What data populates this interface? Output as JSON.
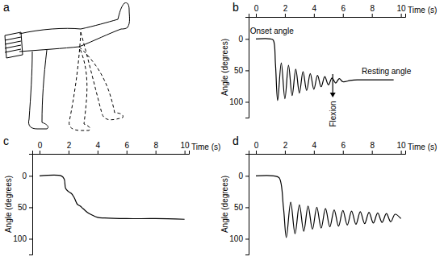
{
  "figure": {
    "panel_a_label": "a"
  },
  "chart_data": [
    {
      "type": "line",
      "panel_label": "b",
      "x_label": "Time (s)",
      "y_label": "Angle (degrees)",
      "color": "#000000",
      "xlim": [
        -0.5,
        10.3
      ],
      "xticks": [
        0,
        2,
        4,
        6,
        8,
        10
      ],
      "ylim": [
        -35,
        125
      ],
      "yticks": [
        0,
        50,
        100
      ],
      "x": [
        0,
        1.0,
        1.2,
        1.35,
        1.5,
        1.75,
        2.0,
        2.25,
        2.5,
        2.75,
        3.0,
        3.25,
        3.5,
        3.75,
        4.0,
        4.25,
        4.5,
        4.75,
        5.0,
        5.25,
        5.5,
        5.75,
        6.0,
        6.5,
        7.0,
        8.0,
        9.5
      ],
      "values": [
        0,
        0,
        2,
        40,
        98,
        38,
        95,
        42,
        90,
        48,
        86,
        52,
        82,
        55,
        80,
        58,
        76,
        60,
        73,
        62,
        70,
        63,
        68,
        66,
        65,
        65,
        65
      ],
      "annotations": [
        {
          "text": "Onset angle"
        },
        {
          "text": "Resting angle"
        },
        {
          "text": "Flexion"
        }
      ]
    },
    {
      "type": "line",
      "panel_label": "c",
      "x_label": "Time (s)",
      "y_label": "Angle (degrees)",
      "color": "#000000",
      "xlim": [
        -0.5,
        10.3
      ],
      "xticks": [
        0,
        2,
        4,
        6,
        8,
        10
      ],
      "ylim": [
        -35,
        125
      ],
      "yticks": [
        0,
        50,
        100
      ],
      "x": [
        0,
        1.5,
        1.7,
        1.8,
        2.0,
        2.2,
        2.4,
        2.6,
        2.8,
        3.0,
        3.3,
        3.6,
        4.0,
        4.5,
        6.0,
        8.0,
        10.0
      ],
      "values": [
        0,
        0,
        5,
        20,
        25,
        28,
        35,
        45,
        48,
        52,
        58,
        62,
        66,
        67,
        68,
        68,
        69
      ]
    },
    {
      "type": "line",
      "panel_label": "d",
      "x_label": "Time (s)",
      "y_label": "Angle (degrees)",
      "color": "#000000",
      "xlim": [
        -0.5,
        10.3
      ],
      "xticks": [
        0,
        2,
        4,
        6,
        8,
        10
      ],
      "ylim": [
        -35,
        125
      ],
      "yticks": [
        0,
        50,
        100
      ],
      "x": [
        0,
        1.2,
        1.6,
        1.9,
        2.1,
        2.4,
        2.7,
        3.0,
        3.3,
        3.6,
        3.9,
        4.2,
        4.5,
        4.8,
        5.1,
        5.4,
        5.7,
        6.0,
        6.3,
        6.6,
        6.9,
        7.2,
        7.5,
        7.8,
        8.1,
        8.4,
        8.7,
        9.0,
        9.3,
        9.6,
        10.0
      ],
      "values": [
        0,
        0,
        3,
        50,
        98,
        42,
        92,
        46,
        88,
        48,
        85,
        50,
        83,
        52,
        81,
        54,
        80,
        55,
        78,
        56,
        77,
        57,
        76,
        58,
        75,
        59,
        74,
        60,
        73,
        61,
        68
      ]
    }
  ]
}
